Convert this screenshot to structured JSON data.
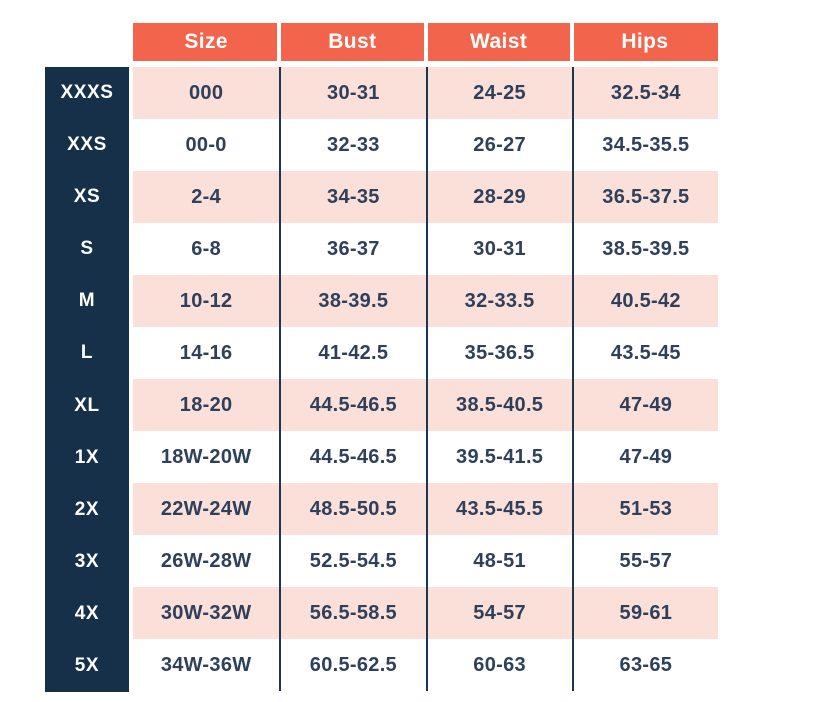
{
  "chart_data": {
    "type": "table",
    "columns": [
      "Size",
      "Bust",
      "Waist",
      "Hips"
    ],
    "rows": [
      {
        "label": "XXXS",
        "cells": [
          "000",
          "30-31",
          "24-25",
          "32.5-34"
        ]
      },
      {
        "label": "XXS",
        "cells": [
          "00-0",
          "32-33",
          "26-27",
          "34.5-35.5"
        ]
      },
      {
        "label": "XS",
        "cells": [
          "2-4",
          "34-35",
          "28-29",
          "36.5-37.5"
        ]
      },
      {
        "label": "S",
        "cells": [
          "6-8",
          "36-37",
          "30-31",
          "38.5-39.5"
        ]
      },
      {
        "label": "M",
        "cells": [
          "10-12",
          "38-39.5",
          "32-33.5",
          "40.5-42"
        ]
      },
      {
        "label": "L",
        "cells": [
          "14-16",
          "41-42.5",
          "35-36.5",
          "43.5-45"
        ]
      },
      {
        "label": "XL",
        "cells": [
          "18-20",
          "44.5-46.5",
          "38.5-40.5",
          "47-49"
        ]
      },
      {
        "label": "1X",
        "cells": [
          "18W-20W",
          "44.5-46.5",
          "39.5-41.5",
          "47-49"
        ]
      },
      {
        "label": "2X",
        "cells": [
          "22W-24W",
          "48.5-50.5",
          "43.5-45.5",
          "51-53"
        ]
      },
      {
        "label": "3X",
        "cells": [
          "26W-28W",
          "52.5-54.5",
          "48-51",
          "55-57"
        ]
      },
      {
        "label": "4X",
        "cells": [
          "30W-32W",
          "56.5-58.5",
          "54-57",
          "59-61"
        ]
      },
      {
        "label": "5X",
        "cells": [
          "34W-36W",
          "60.5-62.5",
          "60-63",
          "63-65"
        ]
      }
    ]
  },
  "colors": {
    "background": "#FFFFFF",
    "header_bg": "#F2654C",
    "header_text": "#FFFFFF",
    "label_bg": "#16304A",
    "label_text": "#FFFFFF",
    "stripe_bg": "#FBDFD9",
    "cell_text": "#2E405C",
    "divider": "#1C3553"
  }
}
